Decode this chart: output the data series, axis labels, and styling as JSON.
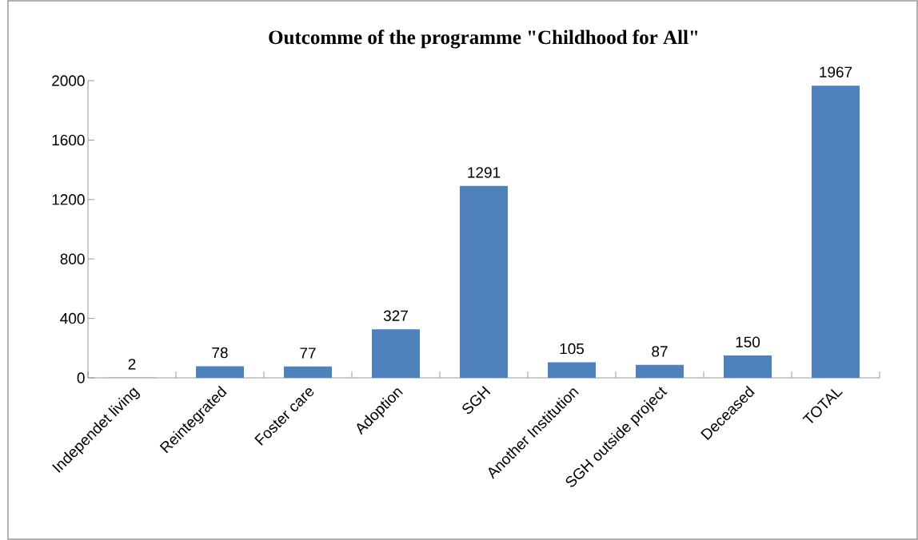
{
  "chart_data": {
    "type": "bar",
    "title": "Outcomme of the programme \"Childhood for All\"",
    "categories": [
      "Independet living",
      "Reintegrated",
      "Foster care",
      "Adoption",
      "SGH",
      "Another Institution",
      "SGH outside project",
      "Deceased",
      "TOTAL"
    ],
    "values": [
      2,
      78,
      77,
      327,
      1291,
      105,
      87,
      150,
      1967
    ],
    "color": "#4f81bd",
    "ylim": [
      0,
      2000
    ],
    "yticks": [
      0,
      400,
      800,
      1200,
      1600,
      2000
    ],
    "data_labels": true
  }
}
